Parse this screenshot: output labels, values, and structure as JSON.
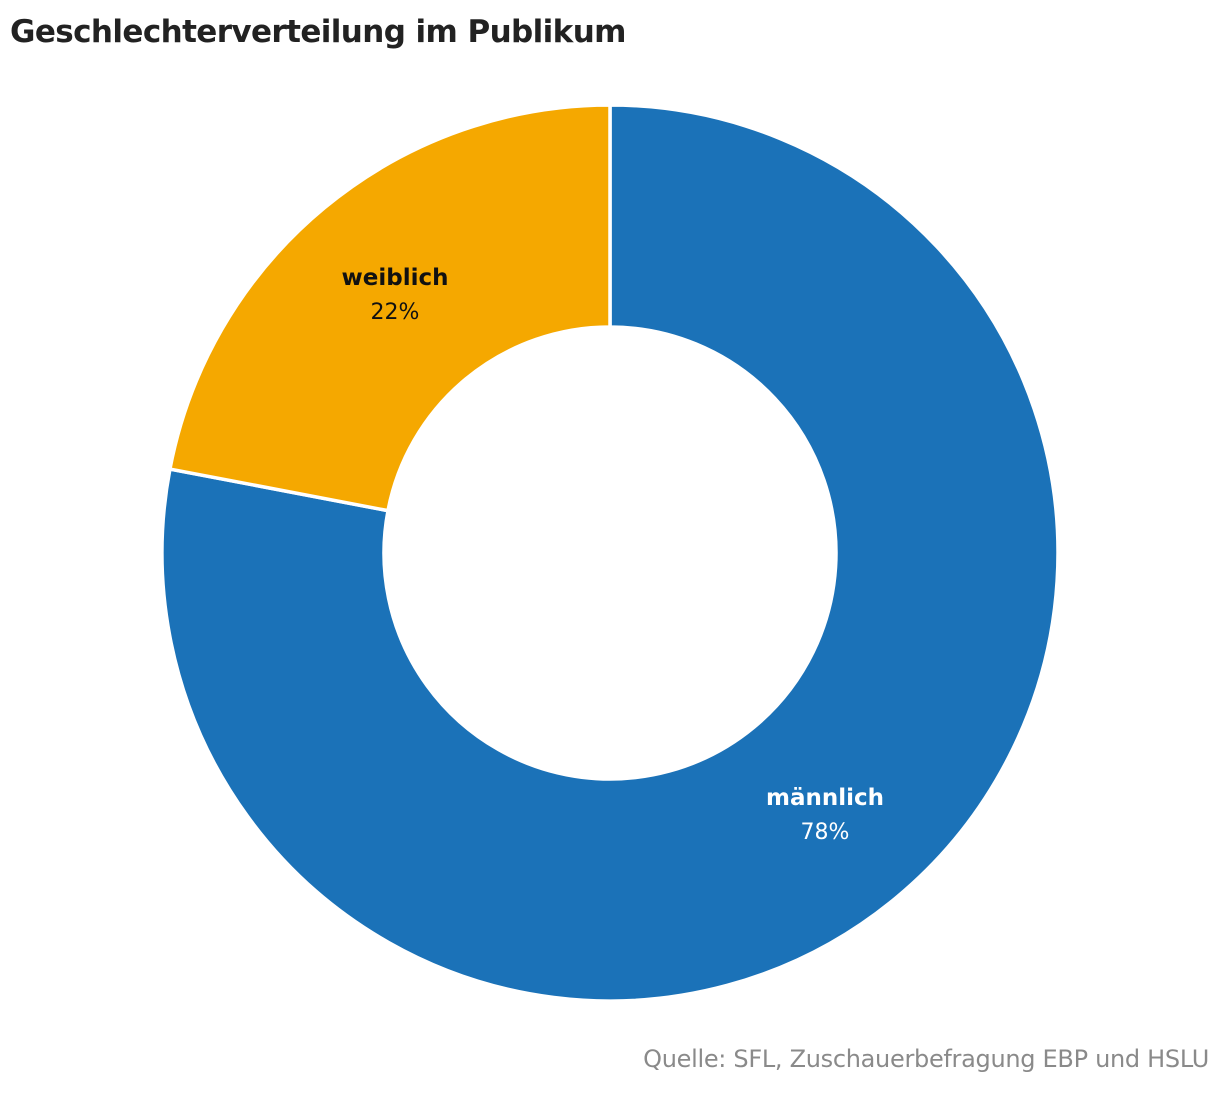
{
  "chart_data": {
    "type": "pie",
    "variant": "donut",
    "title": "Geschlechterverteilung im Publikum",
    "categories": [
      "weiblich",
      "männlich"
    ],
    "values": [
      22,
      78
    ],
    "unit": "%",
    "labels": [
      {
        "name": "weiblich",
        "value_text": "22%"
      },
      {
        "name": "männlich",
        "value_text": "78%"
      }
    ],
    "colors": {
      "weiblich": "#F5A800",
      "männlich": "#1B72B8"
    },
    "legend": "none (inline slice labels)",
    "source": "Quelle: SFL, Zuschauerbefragung EBP und HSLU"
  },
  "header": {
    "title": "Geschlechterverteilung im Publikum"
  },
  "slices": [
    {
      "name": "weiblich",
      "value_text": "22%",
      "color": "#F5A800",
      "text_color": "#111111"
    },
    {
      "name": "männlich",
      "value_text": "78%",
      "color": "#1B72B8",
      "text_color": "#ffffff"
    }
  ],
  "footer": {
    "source": "Quelle: SFL, Zuschauerbefragung EBP und HSLU"
  }
}
